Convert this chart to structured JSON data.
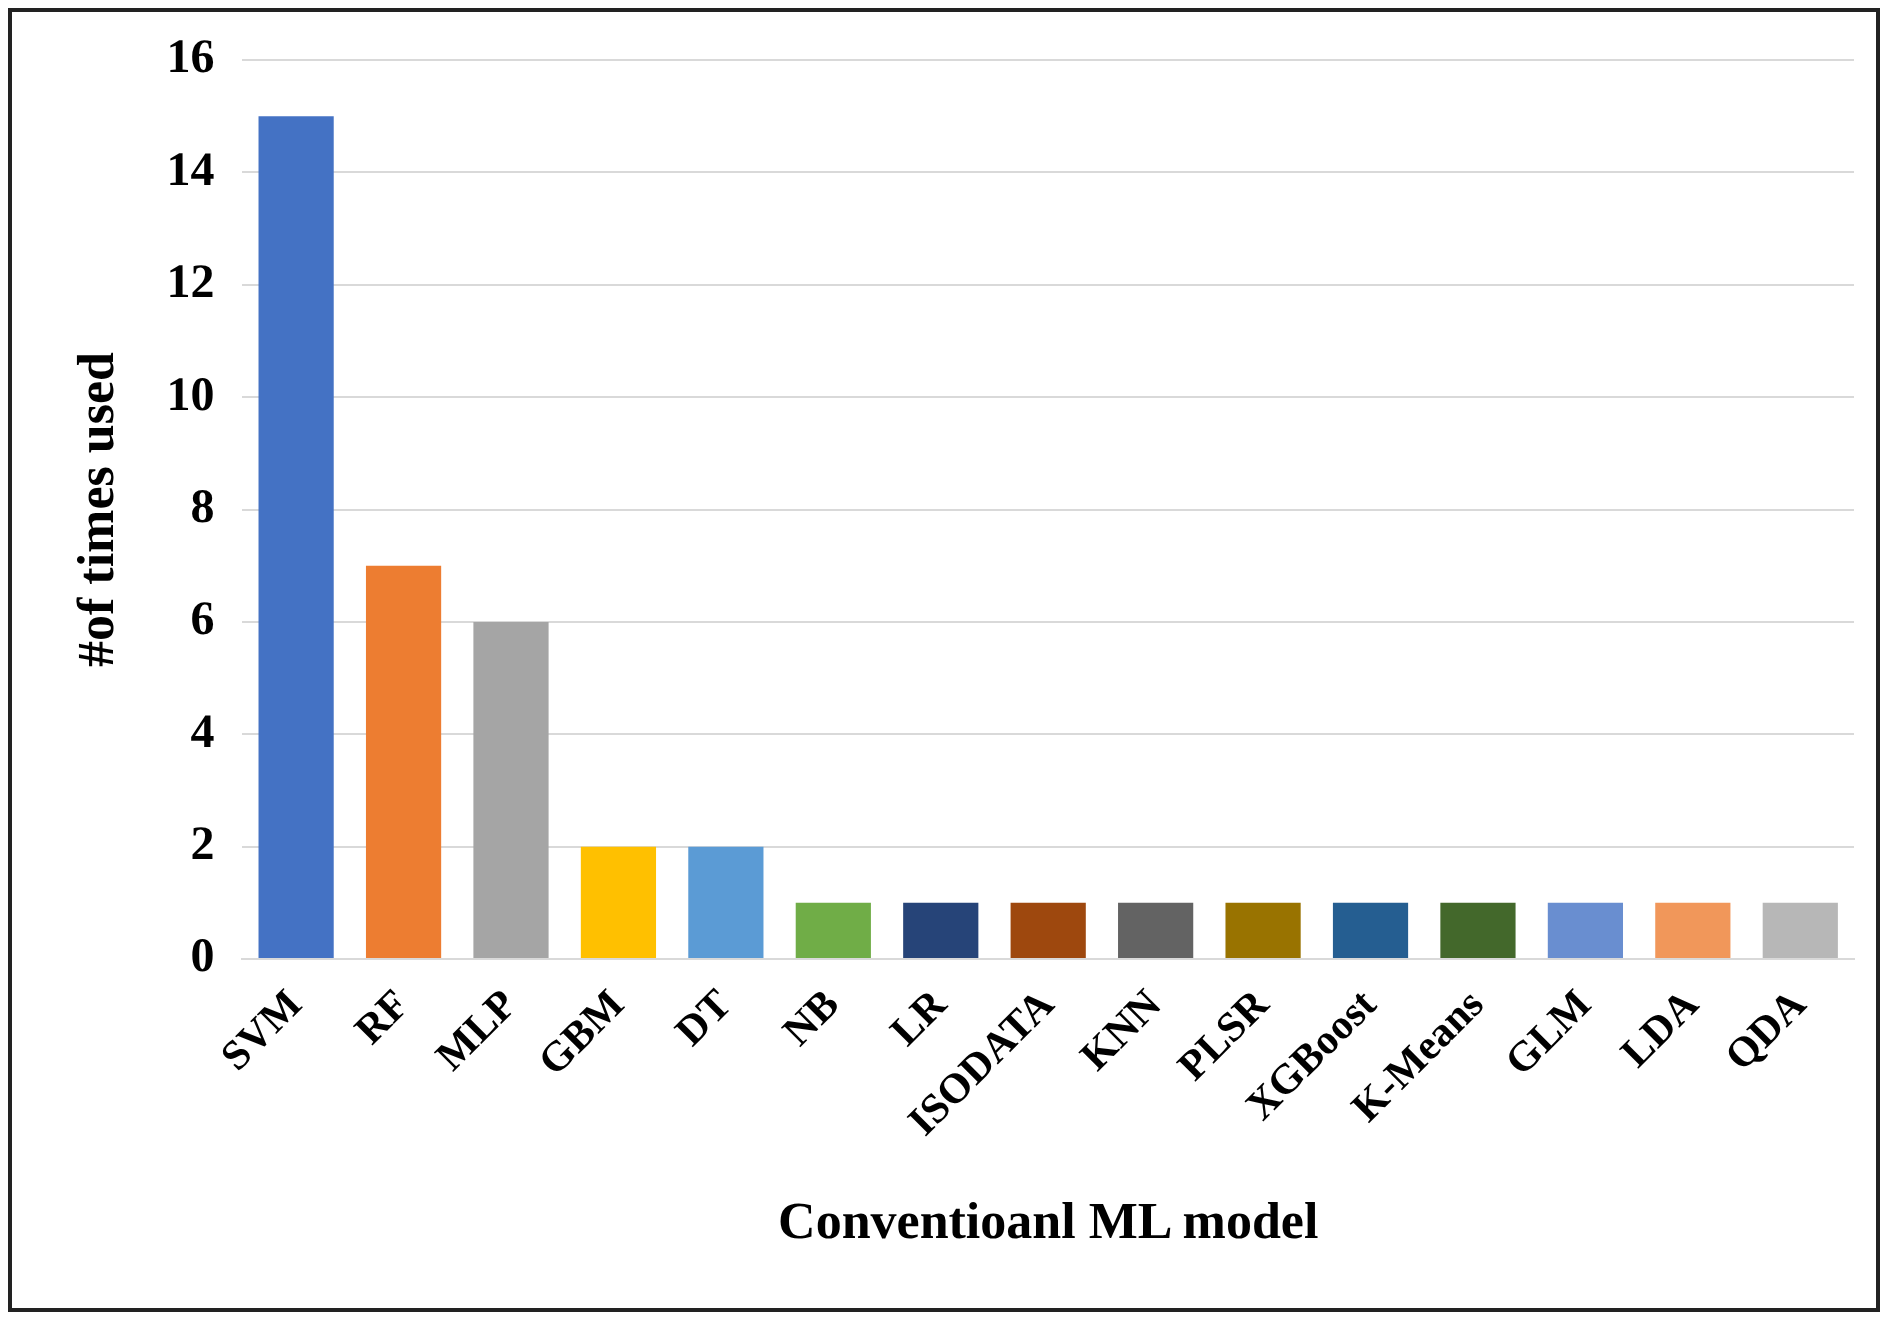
{
  "chart_data": {
    "type": "bar",
    "xlabel": "Conventioanl ML model",
    "ylabel": "#of times used",
    "categories": [
      "SVM",
      "RF",
      "MLP",
      "GBM",
      "DT",
      "NB",
      "LR",
      "ISODATA",
      "KNN",
      "PLSR",
      "XGBoost",
      "K-Means",
      "GLM",
      "LDA",
      "QDA"
    ],
    "values": [
      15,
      7,
      6,
      2,
      2,
      1,
      1,
      1,
      1,
      1,
      1,
      1,
      1,
      1,
      1
    ],
    "colors": [
      "#4472c4",
      "#ed7d31",
      "#a5a5a5",
      "#ffc000",
      "#5b9bd5",
      "#70ad47",
      "#264478",
      "#9e480e",
      "#636363",
      "#997300",
      "#255e91",
      "#43682b",
      "#698ed0",
      "#f1975a",
      "#b7b7b7"
    ],
    "ylim": [
      0,
      16
    ],
    "yticks": [
      0,
      2,
      4,
      6,
      8,
      10,
      12,
      14,
      16
    ],
    "grid": "y",
    "legend": false
  }
}
